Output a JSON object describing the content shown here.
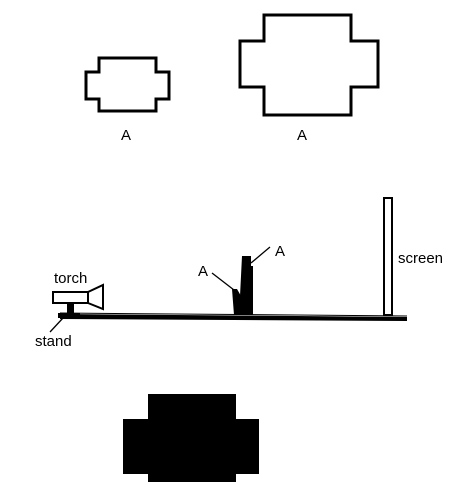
{
  "shapes": {
    "small_label": "A",
    "large_label": "A"
  },
  "setup": {
    "torch_label": "torch",
    "stand_label": "stand",
    "object_label_left": "A",
    "object_label_right": "A",
    "screen_label": "screen"
  },
  "colors": {
    "ink": "#000000",
    "paper": "#ffffff"
  }
}
